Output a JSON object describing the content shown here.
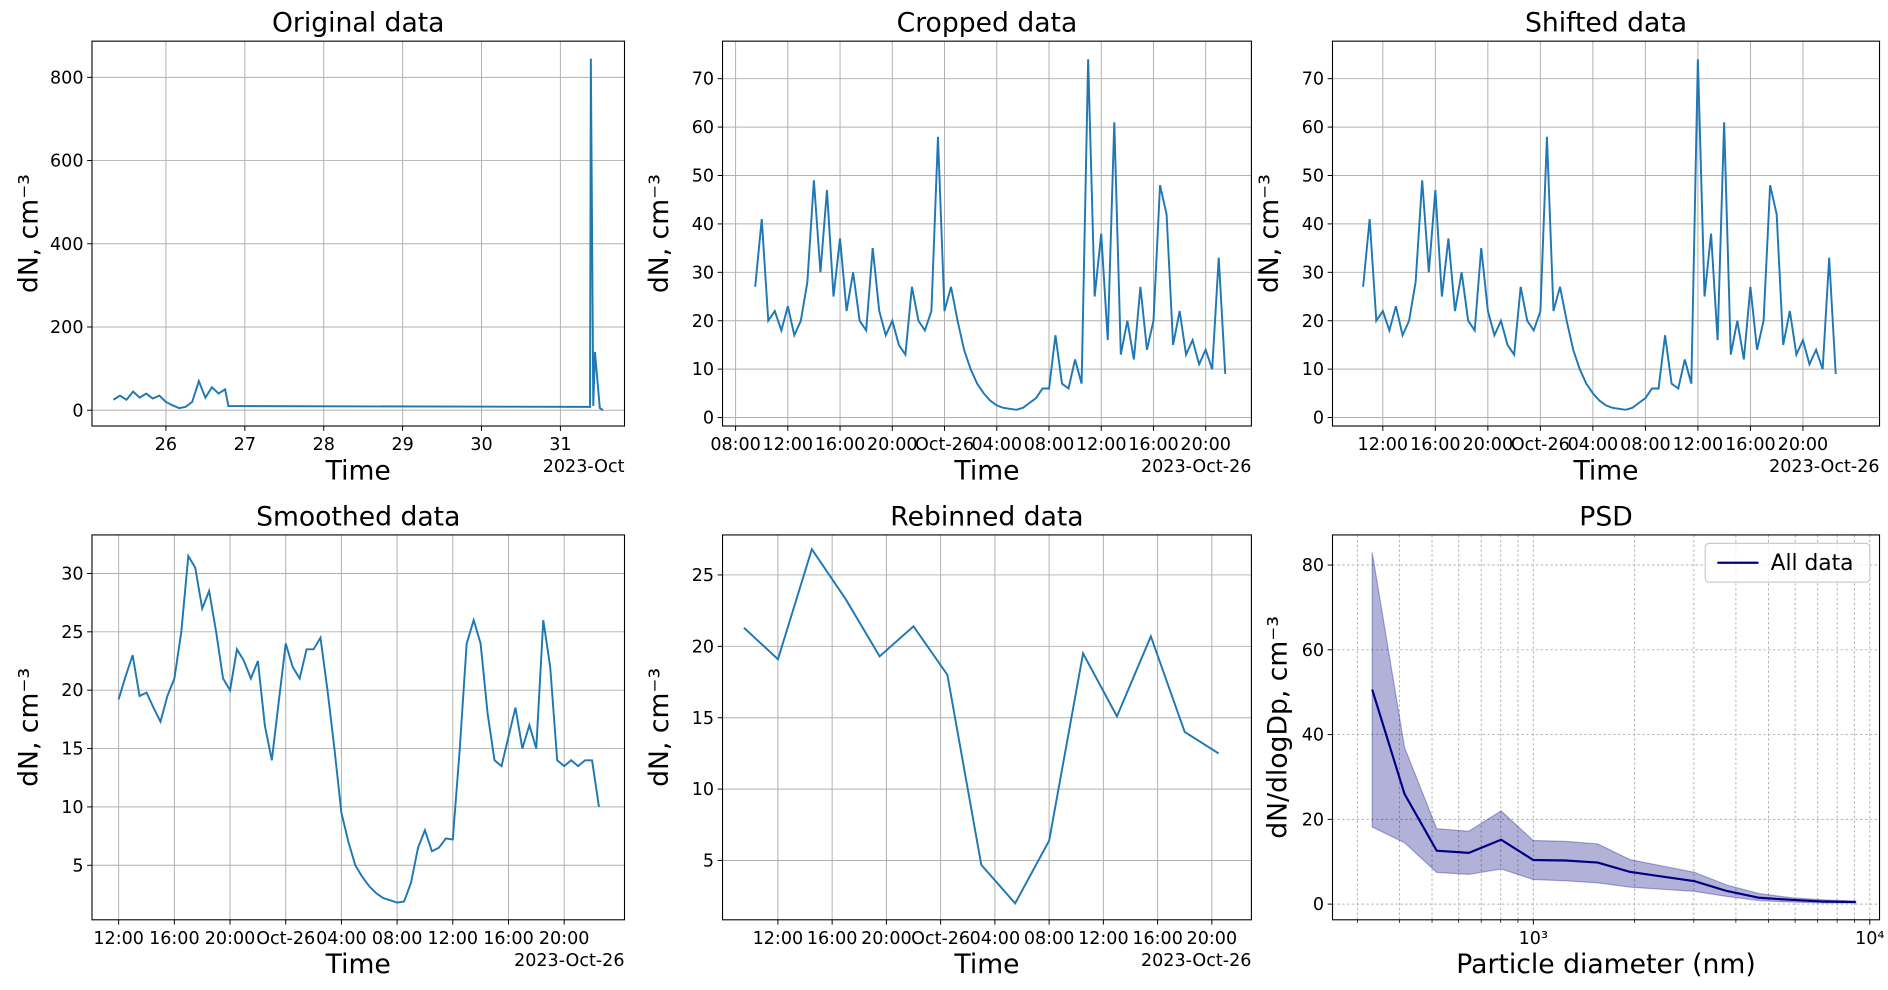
{
  "chart_data": [
    {
      "type": "line",
      "title": "Original data",
      "xlabel": "Time",
      "ylabel": "dN, cm⁻³",
      "x_offset_label": "2023-Oct",
      "color": "#1f77b4",
      "grid": "major",
      "x": [
        "2023-10-25 08:00",
        "2023-10-25 10:00",
        "2023-10-25 12:00",
        "2023-10-25 14:00",
        "2023-10-25 16:00",
        "2023-10-25 18:00",
        "2023-10-25 20:00",
        "2023-10-25 22:00",
        "2023-10-26 00:00",
        "2023-10-26 02:00",
        "2023-10-26 04:00",
        "2023-10-26 06:00",
        "2023-10-26 08:00",
        "2023-10-26 10:00",
        "2023-10-26 12:00",
        "2023-10-26 14:00",
        "2023-10-26 16:00",
        "2023-10-26 18:00",
        "2023-10-26 19:00",
        "2023-10-31 09:00",
        "2023-10-31 09:15",
        "2023-10-31 09:30",
        "2023-10-31 10:00",
        "2023-10-31 10:30",
        "2023-10-31 12:00",
        "2023-10-31 13:00"
      ],
      "values": [
        25,
        35,
        25,
        45,
        30,
        40,
        28,
        35,
        20,
        12,
        5,
        8,
        20,
        70,
        30,
        55,
        40,
        50,
        10,
        8,
        845,
        600,
        10,
        140,
        5,
        0
      ],
      "xlim": [
        "2023-10-25 01:30",
        "2023-10-31 19:30"
      ],
      "xticks": [
        {
          "value": "2023-10-26 00:00",
          "label": "26"
        },
        {
          "value": "2023-10-27 00:00",
          "label": "27"
        },
        {
          "value": "2023-10-28 00:00",
          "label": "28"
        },
        {
          "value": "2023-10-29 00:00",
          "label": "29"
        },
        {
          "value": "2023-10-30 00:00",
          "label": "30"
        },
        {
          "value": "2023-10-31 00:00",
          "label": "31"
        }
      ],
      "ylim": [
        -38,
        887
      ],
      "yticks": [
        0,
        200,
        400,
        600,
        800
      ]
    },
    {
      "type": "line",
      "title": "Cropped data",
      "xlabel": "Time",
      "ylabel": "dN, cm⁻³",
      "x_offset_label": "2023-Oct-26",
      "color": "#1f77b4",
      "grid": "major",
      "x": [
        "2023-10-25 09:30",
        "2023-10-25 10:00",
        "2023-10-25 10:30",
        "2023-10-25 11:00",
        "2023-10-25 11:30",
        "2023-10-25 12:00",
        "2023-10-25 12:30",
        "2023-10-25 13:00",
        "2023-10-25 13:30",
        "2023-10-25 14:00",
        "2023-10-25 14:30",
        "2023-10-25 15:00",
        "2023-10-25 15:30",
        "2023-10-25 16:00",
        "2023-10-25 16:30",
        "2023-10-25 17:00",
        "2023-10-25 17:30",
        "2023-10-25 18:00",
        "2023-10-25 18:30",
        "2023-10-25 19:00",
        "2023-10-25 19:30",
        "2023-10-25 20:00",
        "2023-10-25 20:30",
        "2023-10-25 21:00",
        "2023-10-25 21:30",
        "2023-10-25 22:00",
        "2023-10-25 22:30",
        "2023-10-25 23:00",
        "2023-10-25 23:30",
        "2023-10-26 00:00",
        "2023-10-26 00:30",
        "2023-10-26 01:00",
        "2023-10-26 01:30",
        "2023-10-26 02:00",
        "2023-10-26 02:30",
        "2023-10-26 03:00",
        "2023-10-26 03:30",
        "2023-10-26 04:00",
        "2023-10-26 04:30",
        "2023-10-26 05:00",
        "2023-10-26 05:30",
        "2023-10-26 06:00",
        "2023-10-26 06:30",
        "2023-10-26 07:00",
        "2023-10-26 07:30",
        "2023-10-26 08:00",
        "2023-10-26 08:30",
        "2023-10-26 09:00",
        "2023-10-26 09:30",
        "2023-10-26 10:00",
        "2023-10-26 10:30",
        "2023-10-26 11:00",
        "2023-10-26 11:30",
        "2023-10-26 12:00",
        "2023-10-26 12:30",
        "2023-10-26 13:00",
        "2023-10-26 13:30",
        "2023-10-26 14:00",
        "2023-10-26 14:30",
        "2023-10-26 15:00",
        "2023-10-26 15:30",
        "2023-10-26 16:00",
        "2023-10-26 16:30",
        "2023-10-26 17:00",
        "2023-10-26 17:30",
        "2023-10-26 18:00",
        "2023-10-26 18:30",
        "2023-10-26 19:00",
        "2023-10-26 19:30",
        "2023-10-26 20:00",
        "2023-10-26 20:30",
        "2023-10-26 21:00",
        "2023-10-26 21:30"
      ],
      "values": [
        27,
        41,
        20,
        22,
        18,
        23,
        17,
        20,
        28,
        49,
        30,
        47,
        25,
        37,
        22,
        30,
        20,
        18,
        35,
        22,
        17,
        20,
        15,
        13,
        27,
        20,
        18,
        22,
        58,
        22,
        27,
        20,
        14,
        10,
        7,
        5,
        3.5,
        2.5,
        2,
        1.8,
        1.6,
        2,
        3,
        4,
        6,
        6,
        17,
        7,
        6,
        12,
        7,
        74,
        25,
        38,
        16,
        61,
        13,
        20,
        12,
        27,
        14,
        20,
        48,
        42,
        15,
        22,
        13,
        16,
        11,
        14,
        10,
        33,
        9
      ],
      "xlim": [
        "2023-10-25 07:00",
        "2023-10-26 23:30"
      ],
      "xticks": [
        {
          "value": "2023-10-25 08:00",
          "label": "08:00"
        },
        {
          "value": "2023-10-25 12:00",
          "label": "12:00"
        },
        {
          "value": "2023-10-25 16:00",
          "label": "16:00"
        },
        {
          "value": "2023-10-25 20:00",
          "label": "20:00"
        },
        {
          "value": "2023-10-26 00:00",
          "label": "Oct-26"
        },
        {
          "value": "2023-10-26 04:00",
          "label": "04:00"
        },
        {
          "value": "2023-10-26 08:00",
          "label": "08:00"
        },
        {
          "value": "2023-10-26 12:00",
          "label": "12:00"
        },
        {
          "value": "2023-10-26 16:00",
          "label": "16:00"
        },
        {
          "value": "2023-10-26 20:00",
          "label": "20:00"
        }
      ],
      "ylim": [
        -1.75,
        77.75
      ],
      "yticks": [
        0,
        10,
        20,
        30,
        40,
        50,
        60,
        70
      ]
    },
    {
      "type": "line",
      "title": "Shifted data",
      "xlabel": "Time",
      "ylabel": "dN, cm⁻³",
      "x_offset_label": "2023-Oct-26",
      "color": "#1f77b4",
      "grid": "major",
      "x": [
        "2023-10-25 10:30",
        "2023-10-25 11:00",
        "2023-10-25 11:30",
        "2023-10-25 12:00",
        "2023-10-25 12:30",
        "2023-10-25 13:00",
        "2023-10-25 13:30",
        "2023-10-25 14:00",
        "2023-10-25 14:30",
        "2023-10-25 15:00",
        "2023-10-25 15:30",
        "2023-10-25 16:00",
        "2023-10-25 16:30",
        "2023-10-25 17:00",
        "2023-10-25 17:30",
        "2023-10-25 18:00",
        "2023-10-25 18:30",
        "2023-10-25 19:00",
        "2023-10-25 19:30",
        "2023-10-25 20:00",
        "2023-10-25 20:30",
        "2023-10-25 21:00",
        "2023-10-25 21:30",
        "2023-10-25 22:00",
        "2023-10-25 22:30",
        "2023-10-25 23:00",
        "2023-10-25 23:30",
        "2023-10-26 00:00",
        "2023-10-26 00:30",
        "2023-10-26 01:00",
        "2023-10-26 01:30",
        "2023-10-26 02:00",
        "2023-10-26 02:30",
        "2023-10-26 03:00",
        "2023-10-26 03:30",
        "2023-10-26 04:00",
        "2023-10-26 04:30",
        "2023-10-26 05:00",
        "2023-10-26 05:30",
        "2023-10-26 06:00",
        "2023-10-26 06:30",
        "2023-10-26 07:00",
        "2023-10-26 07:30",
        "2023-10-26 08:00",
        "2023-10-26 08:30",
        "2023-10-26 09:00",
        "2023-10-26 09:30",
        "2023-10-26 10:00",
        "2023-10-26 10:30",
        "2023-10-26 11:00",
        "2023-10-26 11:30",
        "2023-10-26 12:00",
        "2023-10-26 12:30",
        "2023-10-26 13:00",
        "2023-10-26 13:30",
        "2023-10-26 14:00",
        "2023-10-26 14:30",
        "2023-10-26 15:00",
        "2023-10-26 15:30",
        "2023-10-26 16:00",
        "2023-10-26 16:30",
        "2023-10-26 17:00",
        "2023-10-26 17:30",
        "2023-10-26 18:00",
        "2023-10-26 18:30",
        "2023-10-26 19:00",
        "2023-10-26 19:30",
        "2023-10-26 20:00",
        "2023-10-26 20:30",
        "2023-10-26 21:00",
        "2023-10-26 21:30",
        "2023-10-26 22:00",
        "2023-10-26 22:30"
      ],
      "values": [
        27,
        41,
        20,
        22,
        18,
        23,
        17,
        20,
        28,
        49,
        30,
        47,
        25,
        37,
        22,
        30,
        20,
        18,
        35,
        22,
        17,
        20,
        15,
        13,
        27,
        20,
        18,
        22,
        58,
        22,
        27,
        20,
        14,
        10,
        7,
        5,
        3.5,
        2.5,
        2,
        1.8,
        1.6,
        2,
        3,
        4,
        6,
        6,
        17,
        7,
        6,
        12,
        7,
        74,
        25,
        38,
        16,
        61,
        13,
        20,
        12,
        27,
        14,
        20,
        48,
        42,
        15,
        22,
        13,
        16,
        11,
        14,
        10,
        33,
        9
      ],
      "xlim": [
        "2023-10-25 08:10",
        "2023-10-27 01:50"
      ],
      "xticks": [
        {
          "value": "2023-10-25 12:00",
          "label": "12:00"
        },
        {
          "value": "2023-10-25 16:00",
          "label": "16:00"
        },
        {
          "value": "2023-10-25 20:00",
          "label": "20:00"
        },
        {
          "value": "2023-10-26 00:00",
          "label": "Oct-26"
        },
        {
          "value": "2023-10-26 04:00",
          "label": "04:00"
        },
        {
          "value": "2023-10-26 08:00",
          "label": "08:00"
        },
        {
          "value": "2023-10-26 12:00",
          "label": "12:00"
        },
        {
          "value": "2023-10-26 16:00",
          "label": "16:00"
        },
        {
          "value": "2023-10-26 20:00",
          "label": "20:00"
        }
      ],
      "ylim": [
        -1.75,
        77.75
      ],
      "yticks": [
        0,
        10,
        20,
        30,
        40,
        50,
        60,
        70
      ]
    },
    {
      "type": "line",
      "title": "Smoothed data",
      "xlabel": "Time",
      "ylabel": "dN, cm⁻³",
      "x_offset_label": "2023-Oct-26",
      "color": "#1f77b4",
      "grid": "major",
      "x": [
        "2023-10-25 12:00",
        "2023-10-25 12:30",
        "2023-10-25 13:00",
        "2023-10-25 13:30",
        "2023-10-25 14:00",
        "2023-10-25 14:30",
        "2023-10-25 15:00",
        "2023-10-25 15:30",
        "2023-10-25 16:00",
        "2023-10-25 16:30",
        "2023-10-25 17:00",
        "2023-10-25 17:30",
        "2023-10-25 18:00",
        "2023-10-25 18:30",
        "2023-10-25 19:00",
        "2023-10-25 19:30",
        "2023-10-25 20:00",
        "2023-10-25 20:30",
        "2023-10-25 21:00",
        "2023-10-25 21:30",
        "2023-10-25 22:00",
        "2023-10-25 22:30",
        "2023-10-25 23:00",
        "2023-10-25 23:30",
        "2023-10-26 00:00",
        "2023-10-26 00:30",
        "2023-10-26 01:00",
        "2023-10-26 01:30",
        "2023-10-26 02:00",
        "2023-10-26 02:30",
        "2023-10-26 03:00",
        "2023-10-26 03:30",
        "2023-10-26 04:00",
        "2023-10-26 04:30",
        "2023-10-26 05:00",
        "2023-10-26 05:30",
        "2023-10-26 06:00",
        "2023-10-26 06:30",
        "2023-10-26 07:00",
        "2023-10-26 07:30",
        "2023-10-26 08:00",
        "2023-10-26 08:30",
        "2023-10-26 09:00",
        "2023-10-26 09:30",
        "2023-10-26 10:00",
        "2023-10-26 10:30",
        "2023-10-26 11:00",
        "2023-10-26 11:30",
        "2023-10-26 12:00",
        "2023-10-26 12:30",
        "2023-10-26 13:00",
        "2023-10-26 13:30",
        "2023-10-26 14:00",
        "2023-10-26 14:30",
        "2023-10-26 15:00",
        "2023-10-26 15:30",
        "2023-10-26 16:00",
        "2023-10-26 16:30",
        "2023-10-26 17:00",
        "2023-10-26 17:30",
        "2023-10-26 18:00",
        "2023-10-26 18:30",
        "2023-10-26 19:00",
        "2023-10-26 19:30",
        "2023-10-26 20:00",
        "2023-10-26 20:30",
        "2023-10-26 21:00",
        "2023-10-26 21:30",
        "2023-10-26 22:00",
        "2023-10-26 22:30"
      ],
      "values": [
        19.2,
        21.2,
        23,
        19.5,
        19.8,
        18.5,
        17.3,
        19.5,
        21,
        25,
        31.5,
        30.5,
        27,
        28.5,
        25,
        21,
        20,
        23.5,
        22.5,
        21,
        22.5,
        17,
        14,
        19,
        24,
        22,
        21,
        23.5,
        23.5,
        24.5,
        20,
        15,
        9.5,
        7,
        5,
        4,
        3.2,
        2.6,
        2.2,
        2,
        1.8,
        1.9,
        3.5,
        6.5,
        8,
        6.2,
        6.5,
        7.3,
        7.2,
        15,
        24,
        26,
        24,
        18,
        14,
        13.5,
        16,
        18.5,
        15,
        17,
        15,
        26,
        22,
        14,
        13.5,
        14,
        13.5,
        14,
        14,
        10
      ],
      "xlim": [
        "2023-10-25 10:05",
        "2023-10-27 00:20"
      ],
      "xticks": [
        {
          "value": "2023-10-25 12:00",
          "label": "12:00"
        },
        {
          "value": "2023-10-25 16:00",
          "label": "16:00"
        },
        {
          "value": "2023-10-25 20:00",
          "label": "20:00"
        },
        {
          "value": "2023-10-26 00:00",
          "label": "Oct-26"
        },
        {
          "value": "2023-10-26 04:00",
          "label": "04:00"
        },
        {
          "value": "2023-10-26 08:00",
          "label": "08:00"
        },
        {
          "value": "2023-10-26 12:00",
          "label": "12:00"
        },
        {
          "value": "2023-10-26 16:00",
          "label": "16:00"
        },
        {
          "value": "2023-10-26 20:00",
          "label": "20:00"
        }
      ],
      "ylim": [
        0.33,
        33.3
      ],
      "yticks": [
        5,
        10,
        15,
        20,
        25,
        30
      ]
    },
    {
      "type": "line",
      "title": "Rebinned data",
      "xlabel": "Time",
      "ylabel": "dN, cm⁻³",
      "x_offset_label": "2023-Oct-26",
      "color": "#1f77b4",
      "grid": "major",
      "x": [
        "2023-10-25 09:30",
        "2023-10-25 12:00",
        "2023-10-25 14:30",
        "2023-10-25 17:00",
        "2023-10-25 19:30",
        "2023-10-25 22:00",
        "2023-10-26 00:30",
        "2023-10-26 03:00",
        "2023-10-26 05:30",
        "2023-10-26 08:00",
        "2023-10-26 10:30",
        "2023-10-26 13:00",
        "2023-10-26 15:30",
        "2023-10-26 18:00",
        "2023-10-26 20:30"
      ],
      "values": [
        21.3,
        19.1,
        26.8,
        23.3,
        19.3,
        21.4,
        18,
        4.7,
        2,
        6.4,
        19.5,
        15.1,
        20.7,
        14,
        12.5
      ],
      "xlim": [
        "2023-10-25 07:55",
        "2023-10-26 22:55"
      ],
      "xticks": [
        {
          "value": "2023-10-25 12:00",
          "label": "12:00"
        },
        {
          "value": "2023-10-25 16:00",
          "label": "16:00"
        },
        {
          "value": "2023-10-25 20:00",
          "label": "20:00"
        },
        {
          "value": "2023-10-26 00:00",
          "label": "Oct-26"
        },
        {
          "value": "2023-10-26 04:00",
          "label": "04:00"
        },
        {
          "value": "2023-10-26 08:00",
          "label": "08:00"
        },
        {
          "value": "2023-10-26 12:00",
          "label": "12:00"
        },
        {
          "value": "2023-10-26 16:00",
          "label": "16:00"
        },
        {
          "value": "2023-10-26 20:00",
          "label": "20:00"
        }
      ],
      "ylim": [
        0.85,
        27.8
      ],
      "yticks": [
        5,
        10,
        15,
        20,
        25
      ]
    },
    {
      "type": "band_line",
      "title": "PSD",
      "xlabel": "Particle diameter (nm)",
      "ylabel": "dN/dlogDp, cm⁻³",
      "xscale": "log",
      "grid": "both",
      "legend": "upper right",
      "x": [
        332,
        414,
        516,
        643,
        802,
        1000,
        1247,
        1555,
        1939,
        2418,
        3015,
        3760,
        4688,
        5846,
        7290,
        9091
      ],
      "series": [
        {
          "name": "All data",
          "color": "#000080",
          "band_color": "rgba(0,0,128,0.3)",
          "values": [
            50.6,
            26,
            12.6,
            12.1,
            15.2,
            10.4,
            10.3,
            9.8,
            7.6,
            6.5,
            5.4,
            3.1,
            1.5,
            1.0,
            0.6,
            0.5
          ],
          "upper": [
            83,
            37,
            17.8,
            17.2,
            22,
            15,
            14.8,
            14.2,
            10.5,
            9,
            7.5,
            4.5,
            2.5,
            1.5,
            1,
            0.7
          ],
          "lower": [
            18.2,
            14.5,
            7.5,
            7,
            8.3,
            5.8,
            5.5,
            5,
            4,
            3.5,
            3,
            1.8,
            0.8,
            0.5,
            0.3,
            0.3
          ]
        }
      ],
      "xlim": [
        253,
        10690
      ],
      "xticks": [
        {
          "value": 1000,
          "label": "10³"
        },
        {
          "value": 10000,
          "label": "10⁴"
        }
      ],
      "xminor_ticks": [
        300,
        400,
        500,
        600,
        700,
        800,
        900,
        2000,
        3000,
        4000,
        5000,
        6000,
        7000,
        8000,
        9000
      ],
      "ylim": [
        -3.7,
        87.1
      ],
      "yticks": [
        0,
        20,
        40,
        60,
        80
      ]
    }
  ]
}
